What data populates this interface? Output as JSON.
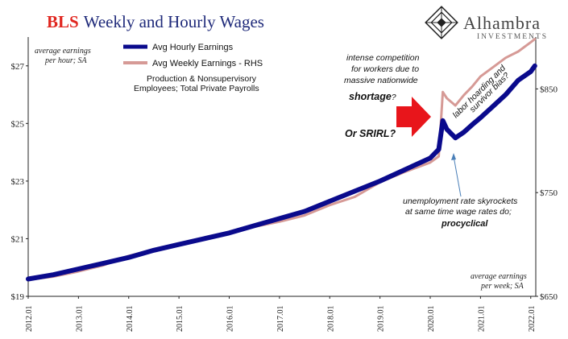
{
  "title": {
    "part1": "BLS",
    "part2": "Weekly and Hourly Wages"
  },
  "brand": {
    "name": "Alhambra",
    "sub": "INVESTMENTS"
  },
  "notes": {
    "left_line1": "average earnings",
    "left_line2": "per hour; SA",
    "right_line1": "average earnings",
    "right_line2": "per week; SA"
  },
  "legend": {
    "hourly": "Avg Hourly Earnings",
    "weekly": "Avg Weekly Earnings - RHS",
    "sub_line1": "Production & Nonsupervisory",
    "sub_line2": "Employees; Total Private Payrolls"
  },
  "annotations": {
    "comp_line1": "intense competition",
    "comp_line2": "for workers due to",
    "comp_line3": "massive nationwide",
    "comp_bold": "shortage",
    "comp_q": "?",
    "srirl": "Or SRIRL?",
    "hoard_line1": "labor hoarding and",
    "hoard_line2": "survivor bias?",
    "unemp_line1": "unemployment rate skyrockets",
    "unemp_line2": "at same time wage rates do;",
    "unemp_bold": "procyclical"
  },
  "colors": {
    "hourly": "#0a0a8c",
    "weekly": "#d69a96",
    "arrow": "#e8151b",
    "title_red": "#e0261f",
    "title_blue": "#1f2a7a"
  },
  "chart_data": {
    "type": "line",
    "x_ticks": [
      "2012.01",
      "2013.01",
      "2014.01",
      "2015.01",
      "2016.01",
      "2017.01",
      "2018.01",
      "2019.01",
      "2020.01",
      "2021.01",
      "2022.01"
    ],
    "y_left_ticks": [
      "$19",
      "$21",
      "$23",
      "$25",
      "$27"
    ],
    "y_right_ticks": [
      "$650",
      "$750",
      "$850"
    ],
    "ylim_left": [
      19,
      28
    ],
    "ylim_right": [
      650,
      900
    ],
    "xlim": [
      2012.0,
      2022.1
    ],
    "series": [
      {
        "name": "Avg Hourly Earnings",
        "axis": "left",
        "x": [
          2012.0,
          2012.5,
          2013.0,
          2013.5,
          2014.0,
          2014.5,
          2015.0,
          2015.5,
          2016.0,
          2016.5,
          2017.0,
          2017.5,
          2018.0,
          2018.5,
          2019.0,
          2019.5,
          2020.0,
          2020.17,
          2020.25,
          2020.33,
          2020.5,
          2020.67,
          2020.83,
          2021.0,
          2021.25,
          2021.5,
          2021.75,
          2022.0,
          2022.08
        ],
        "y": [
          19.6,
          19.75,
          19.95,
          20.15,
          20.35,
          20.6,
          20.8,
          21.0,
          21.2,
          21.45,
          21.7,
          21.95,
          22.3,
          22.65,
          23.0,
          23.4,
          23.8,
          24.1,
          25.1,
          24.8,
          24.5,
          24.7,
          24.95,
          25.2,
          25.6,
          26.0,
          26.5,
          26.8,
          27.0
        ]
      },
      {
        "name": "Avg Weekly Earnings - RHS",
        "axis": "right",
        "x": [
          2012.0,
          2012.5,
          2013.0,
          2013.5,
          2014.0,
          2014.5,
          2015.0,
          2015.5,
          2016.0,
          2016.5,
          2017.0,
          2017.5,
          2018.0,
          2018.5,
          2019.0,
          2019.5,
          2020.0,
          2020.17,
          2020.25,
          2020.33,
          2020.5,
          2020.67,
          2020.83,
          2021.0,
          2021.25,
          2021.5,
          2021.75,
          2022.0,
          2022.08
        ],
        "y": [
          666,
          669,
          674,
          680,
          689,
          695,
          700,
          706,
          711,
          717,
          722,
          728,
          738,
          746,
          760,
          770,
          779,
          785,
          847,
          841,
          834,
          844,
          852,
          862,
          871,
          880,
          886,
          895,
          898
        ]
      }
    ]
  }
}
